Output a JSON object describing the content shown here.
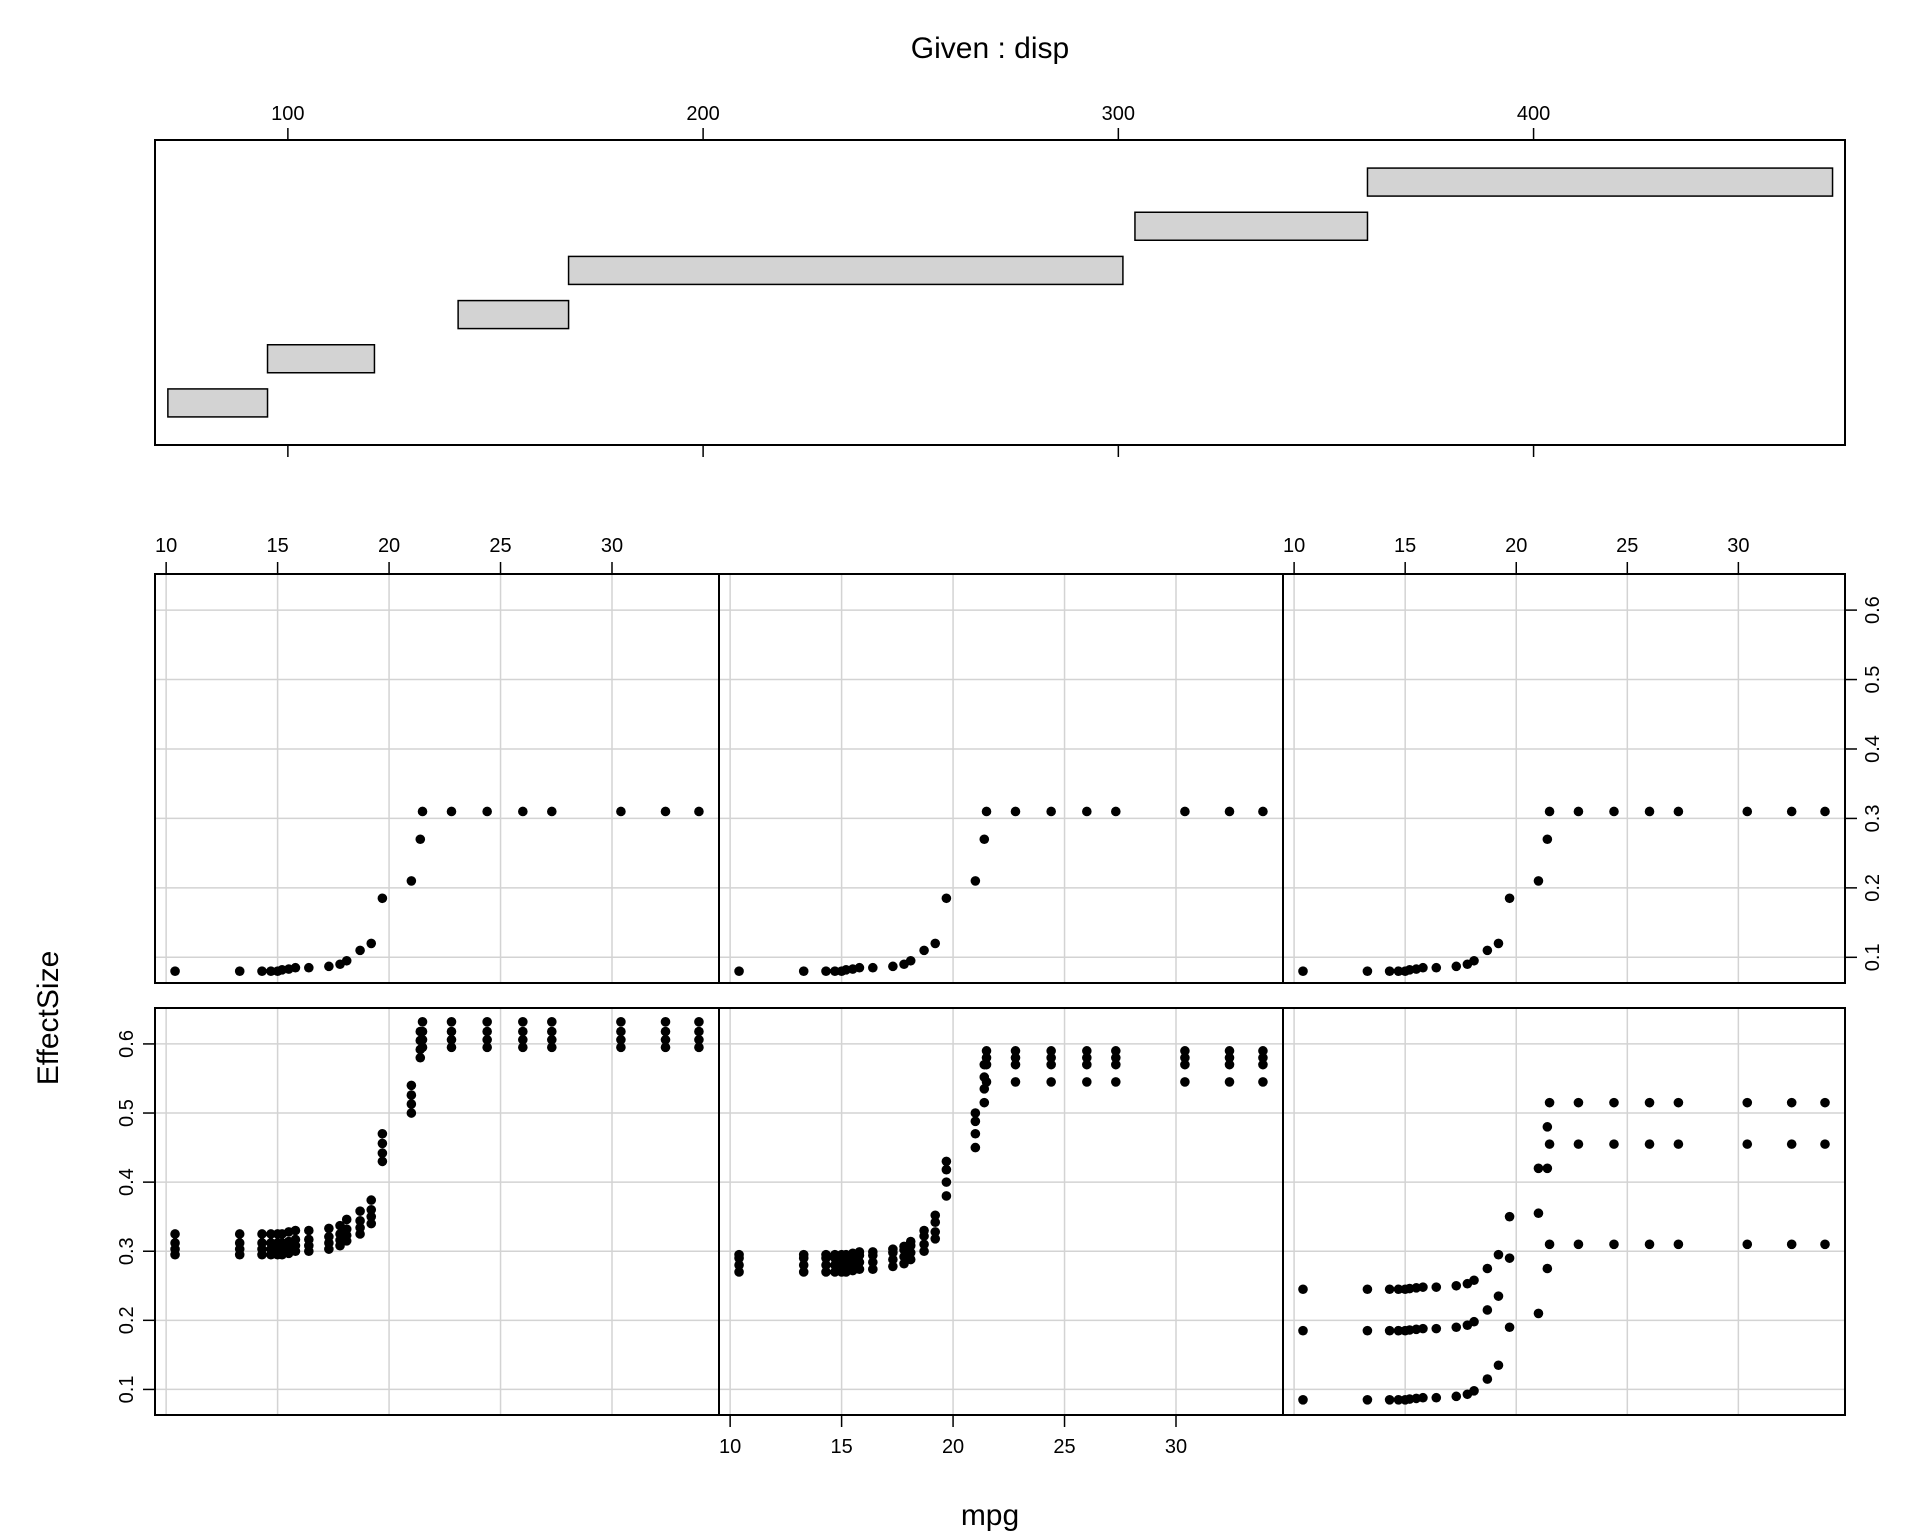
{
  "chart_data": {
    "type": "scatter",
    "variant": "coplot",
    "given": {
      "title": "Given : disp",
      "ticks": [
        100,
        200,
        300,
        400
      ],
      "xlim": [
        68,
        475
      ],
      "intervals": [
        [
          71.1,
          95.1
        ],
        [
          95.1,
          120.85
        ],
        [
          141,
          167.6
        ],
        [
          167.6,
          301.1
        ],
        [
          304,
          360
        ],
        [
          360,
          472
        ]
      ],
      "bar_fill": "#d3d3d3"
    },
    "xlabel": "mpg",
    "ylabel": "EffectSize",
    "xlim": [
      9.5,
      34.8
    ],
    "ylim": [
      0.063,
      0.652
    ],
    "x_ticks": [
      10,
      15,
      20,
      25,
      30
    ],
    "y_ticks": [
      0.1,
      0.2,
      0.3,
      0.4,
      0.5,
      0.6
    ],
    "grid": true,
    "grid_color": "#d3d3d3",
    "point_color": "#000000",
    "x_values": [
      10.4,
      13.3,
      14.3,
      14.7,
      15.0,
      15.2,
      15.5,
      15.8,
      16.4,
      17.3,
      17.8,
      18.1,
      18.7,
      19.2,
      19.7,
      21.0,
      21.4,
      21.5,
      22.8,
      24.4,
      26.0,
      27.3,
      30.4,
      32.4,
      33.9
    ],
    "top_row_curve": [
      0.08,
      0.08,
      0.08,
      0.08,
      0.08,
      0.082,
      0.083,
      0.085,
      0.085,
      0.087,
      0.09,
      0.095,
      0.11,
      0.12,
      0.185,
      0.21,
      0.27,
      0.31,
      0.31,
      0.31,
      0.31,
      0.31,
      0.31,
      0.31,
      0.31
    ],
    "panels": [
      {
        "row": "top",
        "col": 1,
        "series": [
          {
            "values": [
              0.08,
              0.08,
              0.08,
              0.08,
              0.08,
              0.082,
              0.083,
              0.085,
              0.085,
              0.087,
              0.09,
              0.095,
              0.11,
              0.12,
              0.185,
              0.21,
              0.27,
              0.31,
              0.31,
              0.31,
              0.31,
              0.31,
              0.31,
              0.31,
              0.31
            ]
          }
        ]
      },
      {
        "row": "top",
        "col": 2,
        "series": [
          {
            "values": [
              0.08,
              0.08,
              0.08,
              0.08,
              0.08,
              0.082,
              0.083,
              0.085,
              0.085,
              0.087,
              0.09,
              0.095,
              0.11,
              0.12,
              0.185,
              0.21,
              0.27,
              0.31,
              0.31,
              0.31,
              0.31,
              0.31,
              0.31,
              0.31,
              0.31
            ]
          }
        ]
      },
      {
        "row": "top",
        "col": 3,
        "series": [
          {
            "values": [
              0.08,
              0.08,
              0.08,
              0.08,
              0.08,
              0.082,
              0.083,
              0.085,
              0.085,
              0.087,
              0.09,
              0.095,
              0.11,
              0.12,
              0.185,
              0.21,
              0.27,
              0.31,
              0.31,
              0.31,
              0.31,
              0.31,
              0.31,
              0.31,
              0.31
            ]
          }
        ]
      },
      {
        "row": "bottom",
        "col": 1,
        "series": [
          {
            "values": [
              0.295,
              0.295,
              0.295,
              0.295,
              0.295,
              0.295,
              0.297,
              0.3,
              0.3,
              0.303,
              0.308,
              0.315,
              0.325,
              0.34,
              0.43,
              0.5,
              0.58,
              0.595,
              0.595,
              0.595,
              0.595,
              0.595,
              0.595,
              0.595,
              0.595
            ]
          },
          {
            "values": [
              0.303,
              0.303,
              0.303,
              0.303,
              0.303,
              0.303,
              0.305,
              0.308,
              0.308,
              0.312,
              0.316,
              0.323,
              0.334,
              0.35,
              0.442,
              0.513,
              0.592,
              0.606,
              0.606,
              0.606,
              0.606,
              0.606,
              0.606,
              0.606,
              0.606
            ]
          },
          {
            "values": [
              0.312,
              0.312,
              0.312,
              0.312,
              0.312,
              0.312,
              0.314,
              0.317,
              0.317,
              0.321,
              0.325,
              0.332,
              0.344,
              0.36,
              0.456,
              0.526,
              0.605,
              0.618,
              0.618,
              0.618,
              0.618,
              0.618,
              0.618,
              0.618,
              0.618
            ]
          },
          {
            "values": [
              0.325,
              0.325,
              0.325,
              0.325,
              0.325,
              0.325,
              0.328,
              0.33,
              0.33,
              0.333,
              0.337,
              0.346,
              0.358,
              0.374,
              0.47,
              0.54,
              0.618,
              0.632,
              0.632,
              0.632,
              0.632,
              0.632,
              0.632,
              0.632,
              0.632
            ]
          }
        ]
      },
      {
        "row": "bottom",
        "col": 2,
        "series": [
          {
            "values": [
              0.27,
              0.27,
              0.27,
              0.27,
              0.27,
              0.27,
              0.272,
              0.274,
              0.274,
              0.278,
              0.282,
              0.288,
              0.3,
              0.318,
              0.38,
              0.45,
              0.515,
              0.545,
              0.545,
              0.545,
              0.545,
              0.545,
              0.545,
              0.545,
              0.545
            ]
          },
          {
            "values": [
              0.28,
              0.28,
              0.28,
              0.28,
              0.28,
              0.28,
              0.282,
              0.284,
              0.284,
              0.288,
              0.292,
              0.298,
              0.31,
              0.328,
              0.4,
              0.47,
              0.535,
              0.57,
              0.57,
              0.57,
              0.57,
              0.57,
              0.57,
              0.57,
              0.57
            ]
          },
          {
            "values": [
              0.29,
              0.29,
              0.29,
              0.29,
              0.29,
              0.29,
              0.292,
              0.294,
              0.294,
              0.298,
              0.302,
              0.308,
              0.322,
              0.342,
              0.418,
              0.488,
              0.552,
              0.58,
              0.58,
              0.58,
              0.58,
              0.58,
              0.58,
              0.58,
              0.58
            ]
          },
          {
            "values": [
              0.295,
              0.295,
              0.295,
              0.295,
              0.295,
              0.295,
              0.297,
              0.299,
              0.299,
              0.303,
              0.307,
              0.314,
              0.33,
              0.352,
              0.43,
              0.5,
              0.57,
              0.59,
              0.59,
              0.59,
              0.59,
              0.59,
              0.59,
              0.59,
              0.59
            ]
          }
        ]
      },
      {
        "row": "bottom",
        "col": 3,
        "series": [
          {
            "values": [
              0.085,
              0.085,
              0.085,
              0.085,
              0.085,
              0.086,
              0.087,
              0.088,
              0.088,
              0.09,
              0.093,
              0.098,
              0.115,
              0.135,
              0.19,
              0.21,
              0.275,
              0.31,
              0.31,
              0.31,
              0.31,
              0.31,
              0.31,
              0.31,
              0.31
            ]
          },
          {
            "values": [
              0.185,
              0.185,
              0.185,
              0.185,
              0.185,
              0.186,
              0.187,
              0.188,
              0.188,
              0.19,
              0.193,
              0.198,
              0.215,
              0.235,
              0.29,
              0.355,
              0.42,
              0.455,
              0.455,
              0.455,
              0.455,
              0.455,
              0.455,
              0.455,
              0.455
            ]
          },
          {
            "values": [
              0.245,
              0.245,
              0.245,
              0.245,
              0.245,
              0.246,
              0.247,
              0.248,
              0.248,
              0.25,
              0.253,
              0.258,
              0.275,
              0.295,
              0.35,
              0.42,
              0.48,
              0.515,
              0.515,
              0.515,
              0.515,
              0.515,
              0.515,
              0.515,
              0.515
            ]
          }
        ]
      }
    ]
  }
}
